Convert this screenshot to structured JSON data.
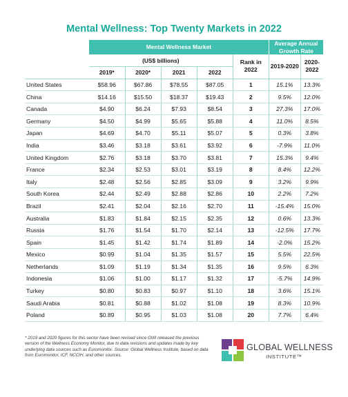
{
  "title": "Mental Wellness: Top Twenty Markets in 2022",
  "header": {
    "group_market": "Mental Wellness Market",
    "group_growth": "Average Annual Growth Rate",
    "units": "(US$ billions)",
    "rank": "Rank in 2022",
    "years": [
      "2019*",
      "2020*",
      "2021",
      "2022"
    ],
    "growth_periods": [
      "2019-2020",
      "2020-2022"
    ]
  },
  "rows": [
    {
      "country": "United States",
      "v2019": "$58.96",
      "v2020": "$67.86",
      "v2021": "$78.55",
      "v2022": "$87.05",
      "rank": "1",
      "g1": "15.1%",
      "g2": "13.3%"
    },
    {
      "country": "China",
      "v2019": "$14.16",
      "v2020": "$15.50",
      "v2021": "$18.37",
      "v2022": "$19.43",
      "rank": "2",
      "g1": "9.5%",
      "g2": "12.0%"
    },
    {
      "country": "Canada",
      "v2019": "$4.90",
      "v2020": "$6.24",
      "v2021": "$7.93",
      "v2022": "$8.54",
      "rank": "3",
      "g1": "27.3%",
      "g2": "17.0%"
    },
    {
      "country": "Germany",
      "v2019": "$4.50",
      "v2020": "$4.99",
      "v2021": "$5.65",
      "v2022": "$5.88",
      "rank": "4",
      "g1": "11.0%",
      "g2": "8.5%"
    },
    {
      "country": "Japan",
      "v2019": "$4.69",
      "v2020": "$4.70",
      "v2021": "$5.11",
      "v2022": "$5.07",
      "rank": "5",
      "g1": "0.3%",
      "g2": "3.8%"
    },
    {
      "country": "India",
      "v2019": "$3.46",
      "v2020": "$3.18",
      "v2021": "$3.61",
      "v2022": "$3.92",
      "rank": "6",
      "g1": "-7.9%",
      "g2": "11.0%"
    },
    {
      "country": "United Kingdom",
      "v2019": "$2.76",
      "v2020": "$3.18",
      "v2021": "$3.70",
      "v2022": "$3.81",
      "rank": "7",
      "g1": "15.3%",
      "g2": "9.4%"
    },
    {
      "country": "France",
      "v2019": "$2.34",
      "v2020": "$2.53",
      "v2021": "$3.01",
      "v2022": "$3.19",
      "rank": "8",
      "g1": "8.4%",
      "g2": "12.2%"
    },
    {
      "country": "Italy",
      "v2019": "$2.48",
      "v2020": "$2.56",
      "v2021": "$2.85",
      "v2022": "$3.09",
      "rank": "9",
      "g1": "3.2%",
      "g2": "9.9%"
    },
    {
      "country": "South Korea",
      "v2019": "$2.44",
      "v2020": "$2.49",
      "v2021": "$2.88",
      "v2022": "$2.86",
      "rank": "10",
      "g1": "2.2%",
      "g2": "7.2%"
    },
    {
      "country": "Brazil",
      "v2019": "$2.41",
      "v2020": "$2.04",
      "v2021": "$2.16",
      "v2022": "$2.70",
      "rank": "11",
      "g1": "-15.4%",
      "g2": "15.0%"
    },
    {
      "country": "Australia",
      "v2019": "$1.83",
      "v2020": "$1.84",
      "v2021": "$2.15",
      "v2022": "$2.35",
      "rank": "12",
      "g1": "0.6%",
      "g2": "13.3%"
    },
    {
      "country": "Russia",
      "v2019": "$1.76",
      "v2020": "$1.54",
      "v2021": "$1.70",
      "v2022": "$2.14",
      "rank": "13",
      "g1": "-12.5%",
      "g2": "17.7%"
    },
    {
      "country": "Spain",
      "v2019": "$1.45",
      "v2020": "$1.42",
      "v2021": "$1.74",
      "v2022": "$1.89",
      "rank": "14",
      "g1": "-2.0%",
      "g2": "15.2%"
    },
    {
      "country": "Mexico",
      "v2019": "$0.99",
      "v2020": "$1.04",
      "v2021": "$1.35",
      "v2022": "$1.57",
      "rank": "15",
      "g1": "5.5%",
      "g2": "22.5%"
    },
    {
      "country": "Netherlands",
      "v2019": "$1.09",
      "v2020": "$1.19",
      "v2021": "$1.34",
      "v2022": "$1.35",
      "rank": "16",
      "g1": "9.5%",
      "g2": "6.3%"
    },
    {
      "country": "Indonesia",
      "v2019": "$1.06",
      "v2020": "$1.00",
      "v2021": "$1.17",
      "v2022": "$1.32",
      "rank": "17",
      "g1": "-5.7%",
      "g2": "14.9%"
    },
    {
      "country": "Turkey",
      "v2019": "$0.80",
      "v2020": "$0.83",
      "v2021": "$0.97",
      "v2022": "$1.10",
      "rank": "18",
      "g1": "3.6%",
      "g2": "15.1%"
    },
    {
      "country": "Saudi Arabia",
      "v2019": "$0.81",
      "v2020": "$0.88",
      "v2021": "$1.02",
      "v2022": "$1.08",
      "rank": "19",
      "g1": "8.3%",
      "g2": "10.9%"
    },
    {
      "country": "Poland",
      "v2019": "$0.89",
      "v2020": "$0.95",
      "v2021": "$1.03",
      "v2022": "$1.08",
      "rank": "20",
      "g1": "7.7%",
      "g2": "6.4%"
    }
  ],
  "footnote": "* 2019 and 2020 figures for this sector have been revised since GWI released the previous version of the Wellness Economy Monitor, due to data revisions and updates made by key underlying data sources such as Euromonitor. Source: Global Wellness Institute, based on data from Euromonitor, ICF, NCCIH, and other sources.",
  "logo": {
    "line1": "GLOBAL WELLNESS",
    "line2": "INSTITUTE™",
    "colors": [
      "#6e3f8f",
      "#e03a3e",
      "#3fbfad",
      "#8cc63f"
    ]
  },
  "colors": {
    "title": "#1aa99b",
    "header_band": "#3fbfad"
  }
}
